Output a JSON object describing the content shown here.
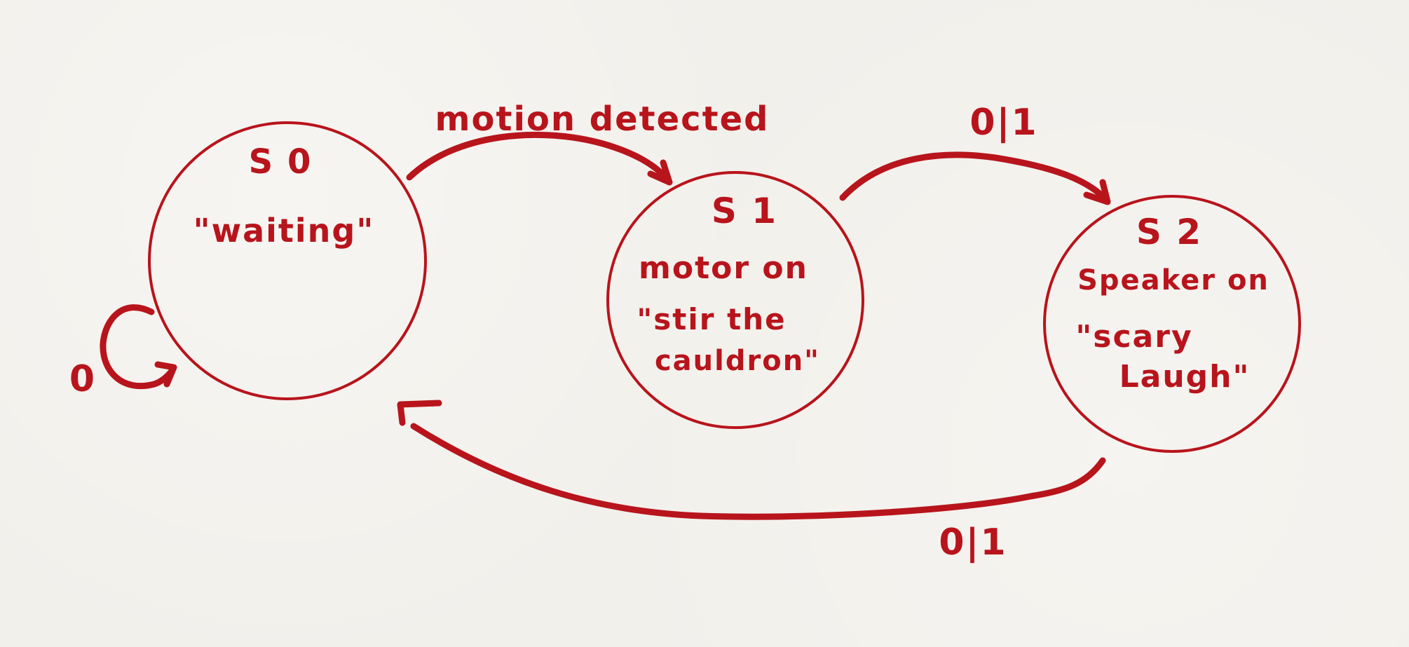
{
  "diagram": {
    "ink_color": "#b8141c",
    "background_color": "#f2f0eb",
    "states": [
      {
        "id": "S0",
        "label": "S 0",
        "lines": [
          "\"waiting\""
        ]
      },
      {
        "id": "S1",
        "label": "S 1",
        "lines": [
          "motor on",
          "\"stir the",
          "cauldron\""
        ]
      },
      {
        "id": "S2",
        "label": "S 2",
        "lines": [
          "Speaker on",
          "\"scary",
          "Laugh\""
        ]
      }
    ],
    "transitions": [
      {
        "from": "S0",
        "to": "S0",
        "label": "0"
      },
      {
        "from": "S0",
        "to": "S1",
        "label": "motion detected"
      },
      {
        "from": "S1",
        "to": "S2",
        "label": "0|1"
      },
      {
        "from": "S2",
        "to": "S0",
        "label": "0|1"
      }
    ]
  }
}
